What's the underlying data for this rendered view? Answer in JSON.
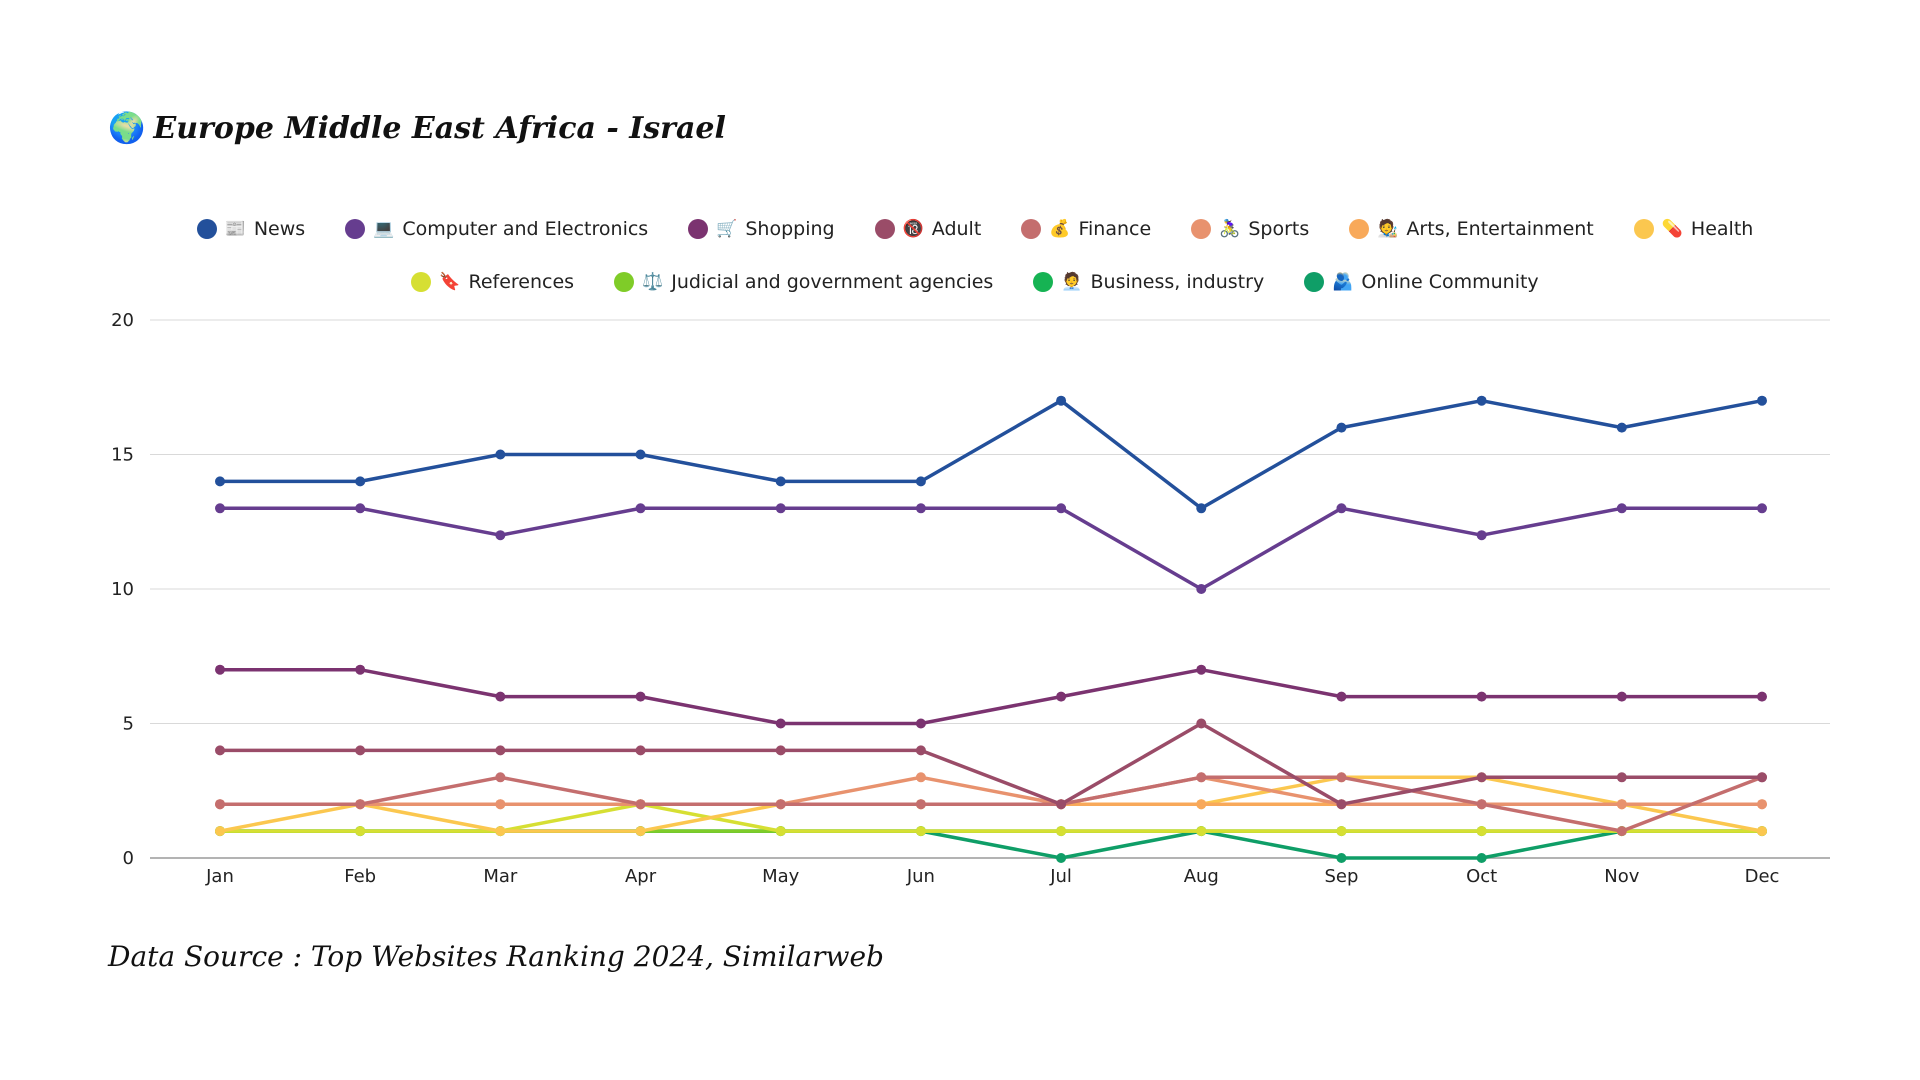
{
  "header": {
    "title_icon": "🌍",
    "title_icon_name": "globe-africa-icon",
    "title": "Europe Middle East Africa - Israel"
  },
  "footer": {
    "source": "Data Source : Top Websites Ranking 2024, Similarweb"
  },
  "chart_data": {
    "type": "line",
    "title": "Europe Middle East Africa - Israel",
    "xlabel": "",
    "ylabel": "",
    "categories": [
      "Jan",
      "Feb",
      "Mar",
      "Apr",
      "May",
      "Jun",
      "Jul",
      "Aug",
      "Sep",
      "Oct",
      "Nov",
      "Dec"
    ],
    "ylim": [
      0,
      20
    ],
    "yticks": [
      0,
      5,
      10,
      15,
      20
    ],
    "grid": true,
    "legend_position": "top",
    "series": [
      {
        "name": "News",
        "icon": "📰",
        "icon_name": "newspaper-icon",
        "color": "#23509b",
        "values": [
          14,
          14,
          15,
          15,
          14,
          14,
          17,
          13,
          16,
          17,
          16,
          17
        ]
      },
      {
        "name": "Computer and Electronics",
        "icon": "💻",
        "icon_name": "laptop-icon",
        "color": "#663d8f",
        "values": [
          13,
          13,
          12,
          13,
          13,
          13,
          13,
          10,
          13,
          12,
          13,
          13
        ]
      },
      {
        "name": "Shopping",
        "icon": "🛒",
        "icon_name": "shopping-cart-icon",
        "color": "#7b3370",
        "values": [
          7,
          7,
          6,
          6,
          5,
          5,
          6,
          7,
          6,
          6,
          6,
          6
        ]
      },
      {
        "name": "Adult",
        "icon": "🔞",
        "icon_name": "no-under-18-icon",
        "color": "#9a4c68",
        "values": [
          4,
          4,
          4,
          4,
          4,
          4,
          2,
          5,
          2,
          3,
          3,
          3
        ]
      },
      {
        "name": "Finance",
        "icon": "💰",
        "icon_name": "money-bag-icon",
        "color": "#c46e6e",
        "values": [
          2,
          2,
          3,
          2,
          2,
          2,
          2,
          3,
          3,
          2,
          1,
          3
        ]
      },
      {
        "name": "Sports",
        "icon": "🚴‍♀️",
        "icon_name": "woman-cycling-icon",
        "color": "#e8926e",
        "values": [
          2,
          2,
          2,
          2,
          2,
          3,
          2,
          3,
          2,
          2,
          2,
          2
        ]
      },
      {
        "name": "Arts, Entertainment",
        "icon": "🧑‍🎨",
        "icon_name": "artist-icon",
        "color": "#f8a95a",
        "values": [
          2,
          2,
          2,
          2,
          2,
          2,
          2,
          2,
          2,
          2,
          2,
          2
        ]
      },
      {
        "name": "Health",
        "icon": "💊",
        "icon_name": "pill-icon",
        "color": "#fbc74f",
        "values": [
          1,
          2,
          1,
          1,
          2,
          2,
          2,
          2,
          3,
          3,
          2,
          1
        ]
      },
      {
        "name": "References",
        "icon": "🔖",
        "icon_name": "bookmark-icon",
        "color": "#d6df33",
        "values": [
          1,
          1,
          1,
          2,
          1,
          1,
          1,
          1,
          1,
          1,
          1,
          1
        ]
      },
      {
        "name": "Judicial and government agencies",
        "icon": "⚖️",
        "icon_name": "balance-scale-icon",
        "color": "#7fcc28",
        "values": [
          1,
          1,
          1,
          1,
          1,
          1,
          1,
          1,
          1,
          1,
          1,
          1
        ]
      },
      {
        "name": "Business, industry",
        "icon": "🧑‍💼",
        "icon_name": "office-worker-icon",
        "color": "#16b353",
        "values": [
          1,
          1,
          1,
          1,
          1,
          1,
          1,
          1,
          1,
          1,
          1,
          1
        ]
      },
      {
        "name": "Online Community",
        "icon": "🫂",
        "icon_name": "people-hugging-icon",
        "color": "#0f9e67",
        "values": [
          1,
          1,
          1,
          1,
          1,
          1,
          0,
          1,
          0,
          0,
          1,
          1
        ]
      }
    ]
  }
}
